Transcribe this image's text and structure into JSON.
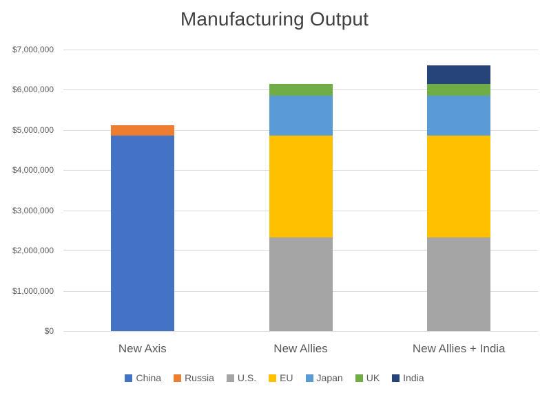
{
  "chart_data": {
    "type": "bar",
    "stacked": true,
    "title": "Manufacturing Output",
    "categories": [
      "New Axis",
      "New Allies",
      "New Allies + India"
    ],
    "series": [
      {
        "name": "China",
        "color": "#4472C4",
        "values": [
          4860000,
          0,
          0
        ]
      },
      {
        "name": "Russia",
        "color": "#ED7D31",
        "values": [
          250000,
          0,
          0
        ]
      },
      {
        "name": "U.S.",
        "color": "#A5A5A5",
        "values": [
          0,
          2330000,
          2330000
        ]
      },
      {
        "name": "EU",
        "color": "#FFC000",
        "values": [
          0,
          2530000,
          2530000
        ]
      },
      {
        "name": "Japan",
        "color": "#5B9BD5",
        "values": [
          0,
          1000000,
          1000000
        ]
      },
      {
        "name": "UK",
        "color": "#70AD47",
        "values": [
          0,
          290000,
          290000
        ]
      },
      {
        "name": "India",
        "color": "#264478",
        "values": [
          0,
          0,
          460000
        ]
      }
    ],
    "xlabel": "",
    "ylabel": "",
    "ylim": [
      0,
      7000000
    ],
    "y_ticks": [
      {
        "value": 0,
        "label": "$0"
      },
      {
        "value": 1000000,
        "label": "$1,000,000"
      },
      {
        "value": 2000000,
        "label": "$2,000,000"
      },
      {
        "value": 3000000,
        "label": "$3,000,000"
      },
      {
        "value": 4000000,
        "label": "$4,000,000"
      },
      {
        "value": 5000000,
        "label": "$5,000,000"
      },
      {
        "value": 6000000,
        "label": "$6,000,000"
      },
      {
        "value": 7000000,
        "label": "$7,000,000"
      }
    ],
    "grid": true,
    "legend_position": "bottom",
    "style": {
      "title_color": "#404040",
      "axis_text_color": "#595959",
      "gridline_color": "#D9D9D9",
      "background": "#FFFFFF"
    }
  }
}
